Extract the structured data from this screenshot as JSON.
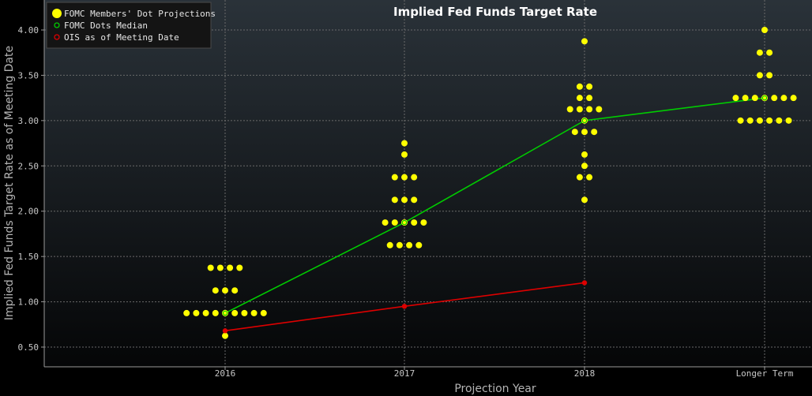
{
  "chart_data": {
    "type": "scatter",
    "title": "Implied Fed Funds Target Rate",
    "xlabel": "Projection Year",
    "ylabel": "Implied Fed Funds Target Rate as of Meeting Date",
    "categories": [
      "2016",
      "2017",
      "2018",
      "Longer Term"
    ],
    "yticks": [
      "0.50",
      "1.00",
      "1.50",
      "2.00",
      "2.50",
      "3.00",
      "3.50",
      "4.00"
    ],
    "ylim": [
      0.4,
      4.2
    ],
    "grid": true,
    "legend_position": "top-left",
    "legend": [
      {
        "label": "FOMC Members' Dot Projections",
        "color": "#ffff00"
      },
      {
        "label": "FOMC Dots Median",
        "color": "#00cc00"
      },
      {
        "label": "OIS as of Meeting Date",
        "color": "#dd0000"
      }
    ],
    "dots": [
      {
        "category": "2016",
        "levels": [
          {
            "value": 1.375,
            "count": 4
          },
          {
            "value": 1.125,
            "count": 3
          },
          {
            "value": 0.875,
            "count": 9
          },
          {
            "value": 0.625,
            "count": 1
          }
        ]
      },
      {
        "category": "2017",
        "levels": [
          {
            "value": 2.75,
            "count": 1
          },
          {
            "value": 2.625,
            "count": 1
          },
          {
            "value": 2.375,
            "count": 3
          },
          {
            "value": 2.125,
            "count": 3
          },
          {
            "value": 1.875,
            "count": 5
          },
          {
            "value": 1.625,
            "count": 4
          }
        ]
      },
      {
        "category": "2018",
        "levels": [
          {
            "value": 3.875,
            "count": 1
          },
          {
            "value": 3.375,
            "count": 2
          },
          {
            "value": 3.25,
            "count": 2
          },
          {
            "value": 3.125,
            "count": 4
          },
          {
            "value": 3.0,
            "count": 1
          },
          {
            "value": 2.875,
            "count": 3
          },
          {
            "value": 2.625,
            "count": 1
          },
          {
            "value": 2.5,
            "count": 1
          },
          {
            "value": 2.375,
            "count": 2
          },
          {
            "value": 2.125,
            "count": 1
          }
        ]
      },
      {
        "category": "Longer Term",
        "levels": [
          {
            "value": 4.0,
            "count": 1
          },
          {
            "value": 3.75,
            "count": 2
          },
          {
            "value": 3.5,
            "count": 2
          },
          {
            "value": 3.25,
            "count": 7
          },
          {
            "value": 3.0,
            "count": 6
          }
        ]
      }
    ],
    "series": [
      {
        "name": "FOMC Dots Median",
        "color": "#00cc00",
        "values": [
          0.875,
          1.875,
          3.0,
          3.25
        ]
      },
      {
        "name": "OIS as of Meeting Date",
        "color": "#dd0000",
        "values": [
          0.68,
          0.95,
          1.21,
          null
        ]
      }
    ]
  }
}
